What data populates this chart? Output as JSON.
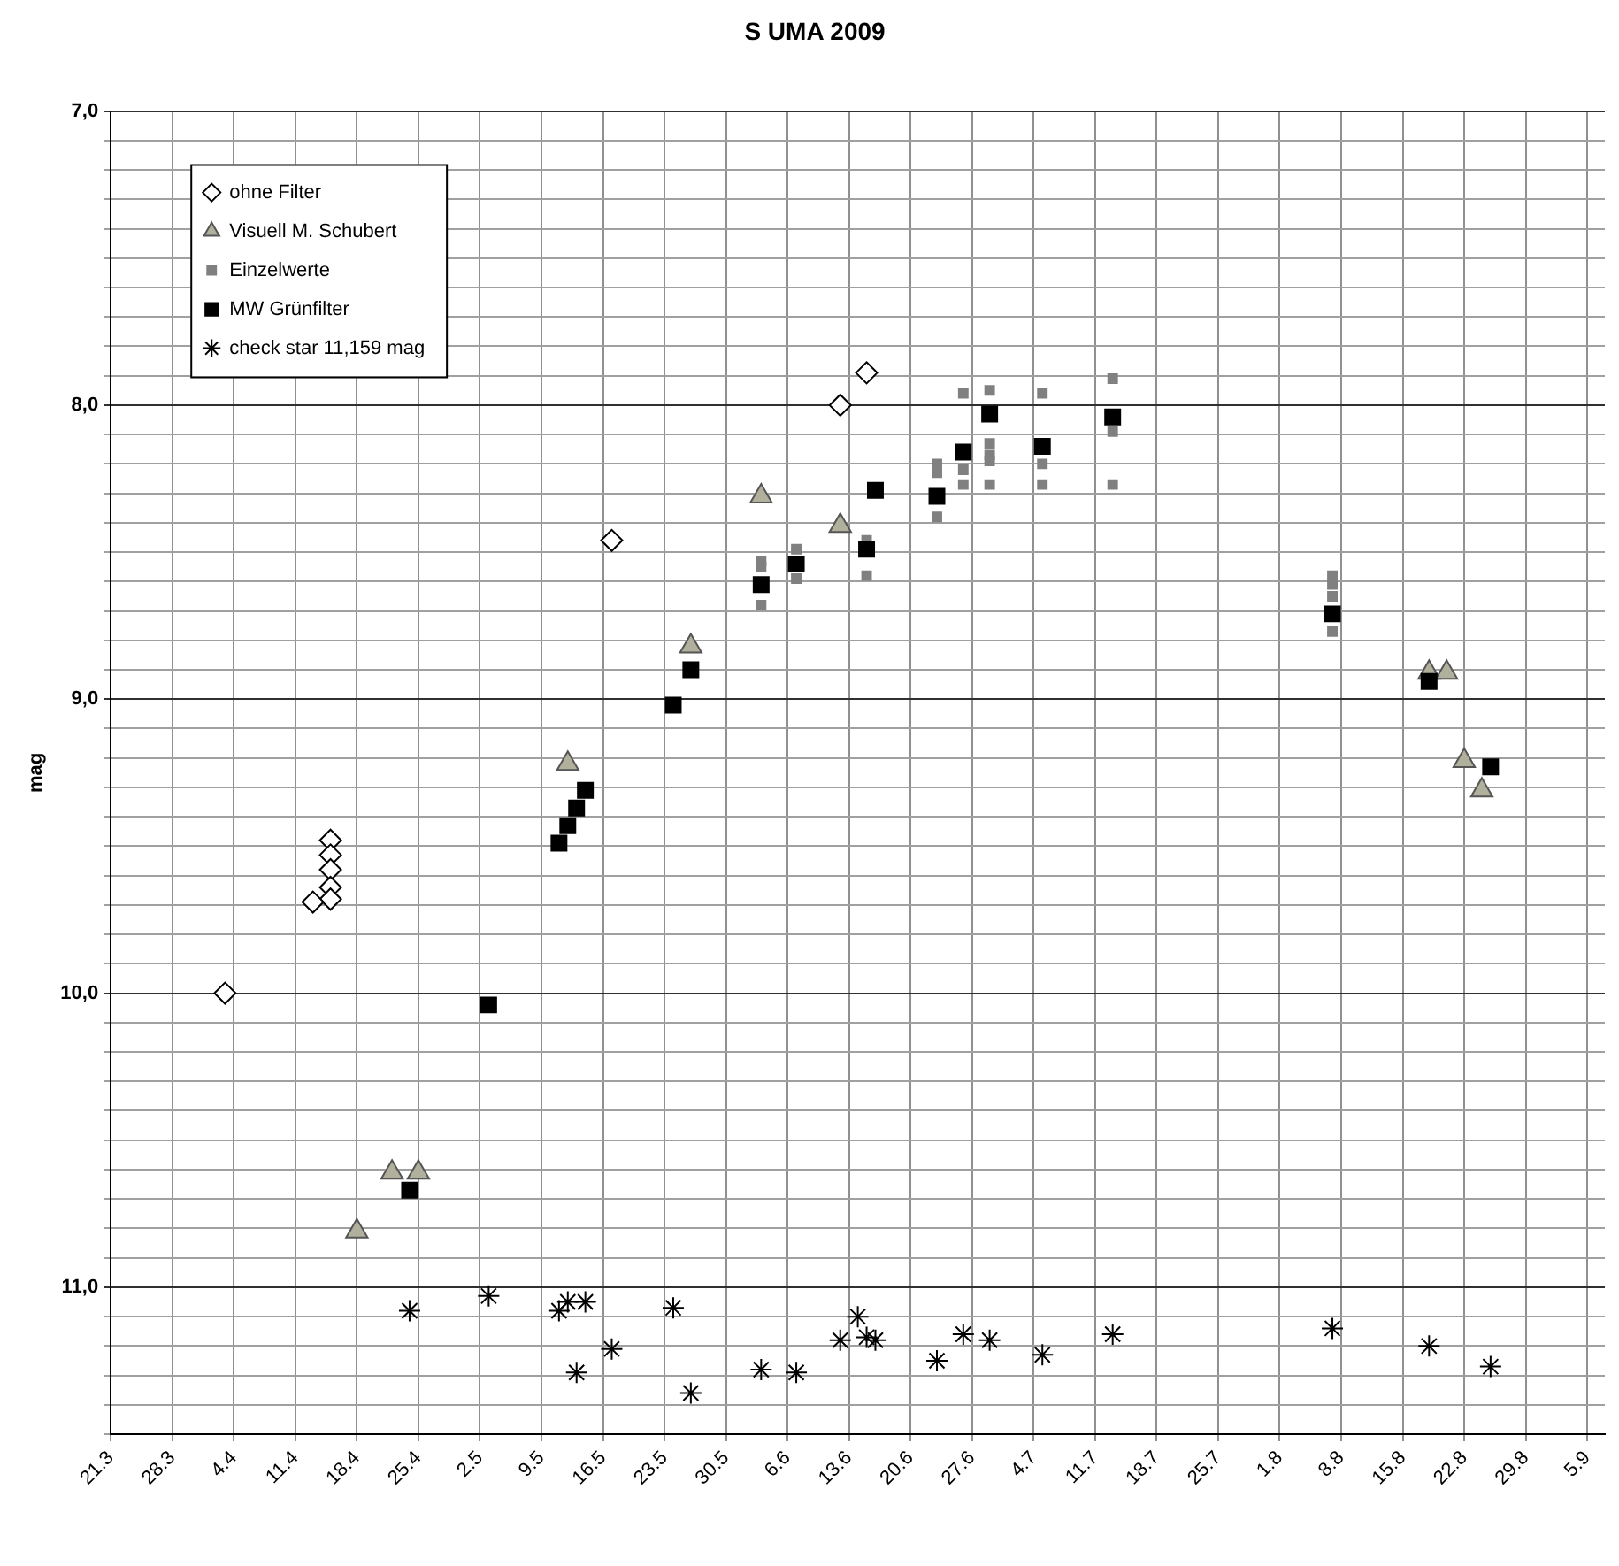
{
  "chart_data": {
    "type": "scatter",
    "title": "S UMA 2009",
    "ylabel": "mag",
    "xlim": [
      "2009-03-21",
      "2009-09-07"
    ],
    "xticks": [
      {
        "value": "2009-03-21",
        "label": "21.3"
      },
      {
        "value": "2009-03-28",
        "label": "28.3"
      },
      {
        "value": "2009-04-04",
        "label": "4.4"
      },
      {
        "value": "2009-04-11",
        "label": "11.4"
      },
      {
        "value": "2009-04-18",
        "label": "18.4"
      },
      {
        "value": "2009-04-25",
        "label": "25.4"
      },
      {
        "value": "2009-05-02",
        "label": "2.5"
      },
      {
        "value": "2009-05-09",
        "label": "9.5"
      },
      {
        "value": "2009-05-16",
        "label": "16.5"
      },
      {
        "value": "2009-05-23",
        "label": "23.5"
      },
      {
        "value": "2009-05-30",
        "label": "30.5"
      },
      {
        "value": "2009-06-06",
        "label": "6.6"
      },
      {
        "value": "2009-06-13",
        "label": "13.6"
      },
      {
        "value": "2009-06-20",
        "label": "20.6"
      },
      {
        "value": "2009-06-27",
        "label": "27.6"
      },
      {
        "value": "2009-07-04",
        "label": "4.7"
      },
      {
        "value": "2009-07-11",
        "label": "11.7"
      },
      {
        "value": "2009-07-18",
        "label": "18.7"
      },
      {
        "value": "2009-07-25",
        "label": "25.7"
      },
      {
        "value": "2009-08-01",
        "label": "1.8"
      },
      {
        "value": "2009-08-08",
        "label": "8.8"
      },
      {
        "value": "2009-08-15",
        "label": "15.8"
      },
      {
        "value": "2009-08-22",
        "label": "22.8"
      },
      {
        "value": "2009-08-29",
        "label": "29.8"
      },
      {
        "value": "2009-09-05",
        "label": "5.9"
      }
    ],
    "ylim": [
      11.5,
      7.0
    ],
    "yticks": [
      {
        "value": 7.0,
        "label": "7,0"
      },
      {
        "value": 7.1,
        "label": null
      },
      {
        "value": 7.2,
        "label": null
      },
      {
        "value": 7.3,
        "label": null
      },
      {
        "value": 7.4,
        "label": null
      },
      {
        "value": 7.5,
        "label": null
      },
      {
        "value": 7.6,
        "label": null
      },
      {
        "value": 7.7,
        "label": null
      },
      {
        "value": 7.8,
        "label": null
      },
      {
        "value": 7.9,
        "label": null
      },
      {
        "value": 8.0,
        "label": "8,0"
      },
      {
        "value": 8.1,
        "label": null
      },
      {
        "value": 8.2,
        "label": null
      },
      {
        "value": 8.3,
        "label": null
      },
      {
        "value": 8.4,
        "label": null
      },
      {
        "value": 8.5,
        "label": null
      },
      {
        "value": 8.6,
        "label": null
      },
      {
        "value": 8.7,
        "label": null
      },
      {
        "value": 8.8,
        "label": null
      },
      {
        "value": 8.9,
        "label": null
      },
      {
        "value": 9.0,
        "label": "9,0"
      },
      {
        "value": 9.1,
        "label": null
      },
      {
        "value": 9.2,
        "label": null
      },
      {
        "value": 9.3,
        "label": null
      },
      {
        "value": 9.4,
        "label": null
      },
      {
        "value": 9.5,
        "label": null
      },
      {
        "value": 9.6,
        "label": null
      },
      {
        "value": 9.7,
        "label": null
      },
      {
        "value": 9.8,
        "label": null
      },
      {
        "value": 9.9,
        "label": null
      },
      {
        "value": 10.0,
        "label": "10,0"
      },
      {
        "value": 10.1,
        "label": null
      },
      {
        "value": 10.2,
        "label": null
      },
      {
        "value": 10.3,
        "label": null
      },
      {
        "value": 10.4,
        "label": null
      },
      {
        "value": 10.5,
        "label": null
      },
      {
        "value": 10.6,
        "label": null
      },
      {
        "value": 10.7,
        "label": null
      },
      {
        "value": 10.8,
        "label": null
      },
      {
        "value": 10.9,
        "label": null
      },
      {
        "value": 11.0,
        "label": "11,0"
      },
      {
        "value": 11.1,
        "label": null
      },
      {
        "value": 11.2,
        "label": null
      },
      {
        "value": 11.3,
        "label": null
      },
      {
        "value": 11.4,
        "label": null
      },
      {
        "value": 11.5,
        "label": null
      }
    ],
    "grid": true,
    "legend": "top left",
    "series": [
      {
        "name": "ohne Filter",
        "color": "#ffffff",
        "marker": "diamond",
        "x": [
          "2009-04-03",
          "2009-04-15",
          "2009-04-15",
          "2009-04-15",
          "2009-04-15",
          "2009-04-15",
          "2009-04-13",
          "2009-05-17",
          "2009-06-12",
          "2009-06-15"
        ],
        "values": [
          10.0,
          9.48,
          9.53,
          9.58,
          9.64,
          9.68,
          9.69,
          8.46,
          8.0,
          7.89
        ]
      },
      {
        "name": "Visuell M. Schubert",
        "color": "#b0b09c",
        "marker": "triangle",
        "x": [
          "2009-04-18",
          "2009-04-22",
          "2009-04-25",
          "2009-05-12",
          "2009-05-26",
          "2009-06-03",
          "2009-06-12",
          "2009-08-18",
          "2009-08-20",
          "2009-08-22",
          "2009-08-24"
        ],
        "values": [
          10.81,
          10.61,
          10.61,
          9.22,
          8.82,
          8.31,
          8.41,
          8.91,
          8.91,
          9.21,
          9.31
        ]
      },
      {
        "name": "Einzelwerte",
        "color": "#808080",
        "marker": "square",
        "x": [
          "2009-06-03",
          "2009-06-03",
          "2009-06-03",
          "2009-06-07",
          "2009-06-07",
          "2009-06-15",
          "2009-06-15",
          "2009-06-23",
          "2009-06-23",
          "2009-06-23",
          "2009-06-26",
          "2009-06-26",
          "2009-06-26",
          "2009-06-29",
          "2009-06-29",
          "2009-06-29",
          "2009-06-29",
          "2009-06-29",
          "2009-07-05",
          "2009-07-05",
          "2009-07-05",
          "2009-07-13",
          "2009-07-13",
          "2009-07-13",
          "2009-08-07",
          "2009-08-07",
          "2009-08-07",
          "2009-08-07"
        ],
        "values": [
          8.53,
          8.55,
          8.68,
          8.49,
          8.59,
          8.46,
          8.58,
          8.2,
          8.23,
          8.38,
          7.96,
          8.22,
          8.27,
          7.95,
          8.13,
          8.17,
          8.19,
          8.27,
          7.96,
          8.2,
          8.27,
          7.91,
          8.09,
          8.27,
          8.58,
          8.61,
          8.65,
          8.77
        ]
      },
      {
        "name": "MW Grünfilter",
        "color": "#000000",
        "marker": "square",
        "x": [
          "2009-04-24",
          "2009-05-03",
          "2009-05-11",
          "2009-05-12",
          "2009-05-13",
          "2009-05-14",
          "2009-05-24",
          "2009-05-26",
          "2009-06-03",
          "2009-06-07",
          "2009-06-15",
          "2009-06-16",
          "2009-06-23",
          "2009-06-26",
          "2009-06-29",
          "2009-07-05",
          "2009-07-13",
          "2009-08-07",
          "2009-08-18",
          "2009-08-25"
        ],
        "values": [
          10.67,
          10.04,
          9.49,
          9.43,
          9.37,
          9.31,
          9.02,
          8.9,
          8.61,
          8.54,
          8.49,
          8.29,
          8.31,
          8.16,
          8.03,
          8.14,
          8.04,
          8.71,
          8.94,
          9.23
        ]
      },
      {
        "name": "check star 11,159 mag",
        "color": "#000000",
        "marker": "cross",
        "x": [
          "2009-04-24",
          "2009-05-03",
          "2009-05-11",
          "2009-05-12",
          "2009-05-14",
          "2009-05-13",
          "2009-05-17",
          "2009-05-24",
          "2009-05-26",
          "2009-06-03",
          "2009-06-07",
          "2009-06-12",
          "2009-06-14",
          "2009-06-15",
          "2009-06-16",
          "2009-06-23",
          "2009-06-26",
          "2009-06-29",
          "2009-07-05",
          "2009-07-13",
          "2009-08-07",
          "2009-08-18",
          "2009-08-25"
        ],
        "values": [
          11.08,
          11.03,
          11.08,
          11.05,
          11.05,
          11.29,
          11.21,
          11.07,
          11.36,
          11.28,
          11.29,
          11.18,
          11.1,
          11.17,
          11.18,
          11.25,
          11.16,
          11.18,
          11.23,
          11.16,
          11.14,
          11.2,
          11.27
        ]
      }
    ]
  }
}
